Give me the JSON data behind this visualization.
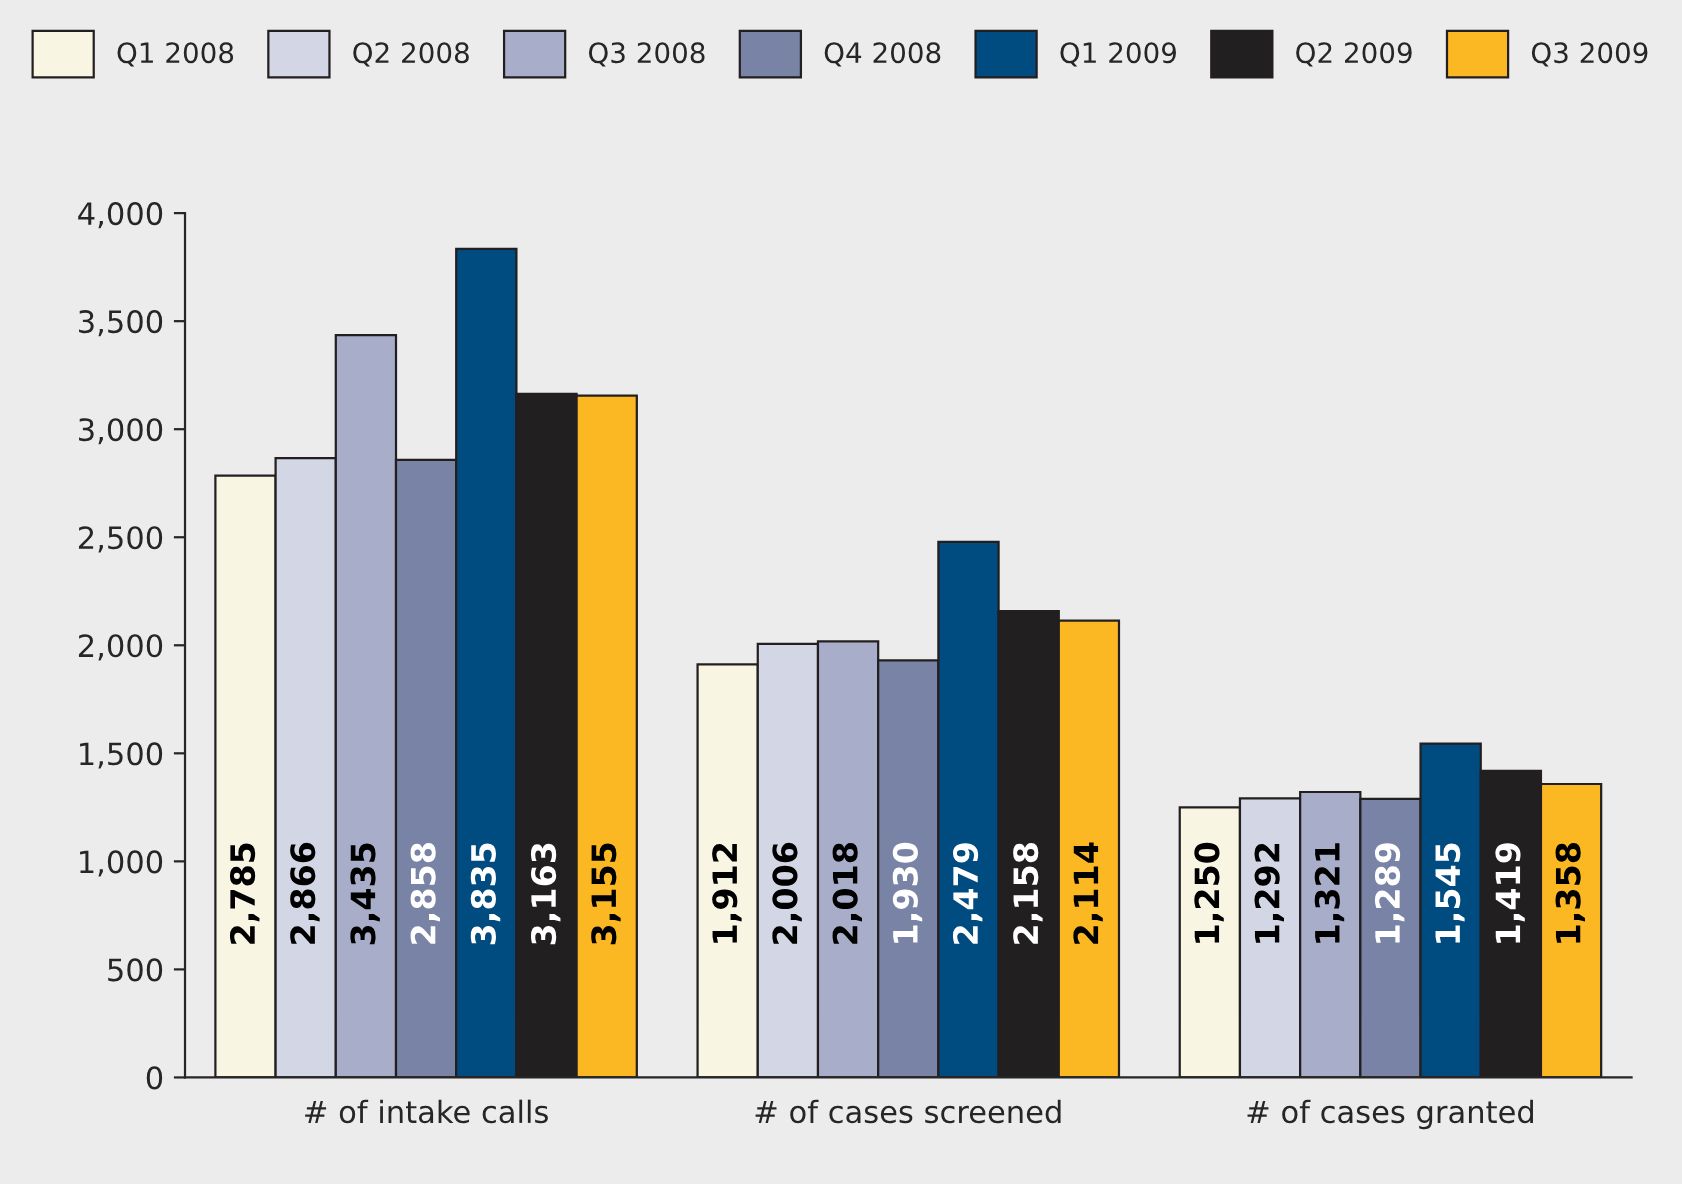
{
  "chart_data": {
    "type": "bar",
    "categories": [
      "# of intake calls",
      "# of cases screened",
      "# of cases granted"
    ],
    "ylim": [
      0,
      4000
    ],
    "yticks": [
      0,
      500,
      {
        "value": 1000,
        "label": "1,000"
      },
      {
        "value": 1500,
        "label": "1,500"
      },
      {
        "value": 2000,
        "label": "2,000"
      },
      {
        "value": 2500,
        "label": "2,500"
      },
      {
        "value": 3000,
        "label": "3,000"
      },
      {
        "value": 3500,
        "label": "3,500"
      },
      {
        "value": 4000,
        "label": "4,000"
      }
    ],
    "legend": "top",
    "grid": false,
    "series": [
      {
        "name": "Q1 2008",
        "color": "#f8f5e3",
        "values": [
          2785,
          1912,
          1250
        ],
        "value_labels": [
          "2,785",
          "1,912",
          "1,250"
        ]
      },
      {
        "name": "Q2 2008",
        "color": "#d3d6e4",
        "values": [
          2866,
          2006,
          1292
        ],
        "value_labels": [
          "2,866",
          "2,006",
          "1,292"
        ]
      },
      {
        "name": "Q3 2008",
        "color": "#a8adc9",
        "values": [
          3435,
          2018,
          1321
        ],
        "value_labels": [
          "3,435",
          "2,018",
          "1,321"
        ]
      },
      {
        "name": "Q4 2008",
        "color": "#7883a6",
        "values": [
          2858,
          1930,
          1289
        ],
        "value_labels": [
          "2,858",
          "1,930",
          "1,289"
        ]
      },
      {
        "name": "Q1 2009",
        "color": "#004b80",
        "values": [
          3835,
          2479,
          1545
        ],
        "value_labels": [
          "3,835",
          "2,479",
          "1,545"
        ]
      },
      {
        "name": "Q2 2009",
        "color": "#221f20",
        "values": [
          3163,
          2158,
          1419
        ],
        "value_labels": [
          "3,163",
          "2,158",
          "1,419"
        ]
      },
      {
        "name": "Q3 2009",
        "color": "#fcb823",
        "values": [
          3155,
          2114,
          1358
        ],
        "value_labels": [
          "3,155",
          "2,114",
          "1,358"
        ]
      }
    ]
  }
}
